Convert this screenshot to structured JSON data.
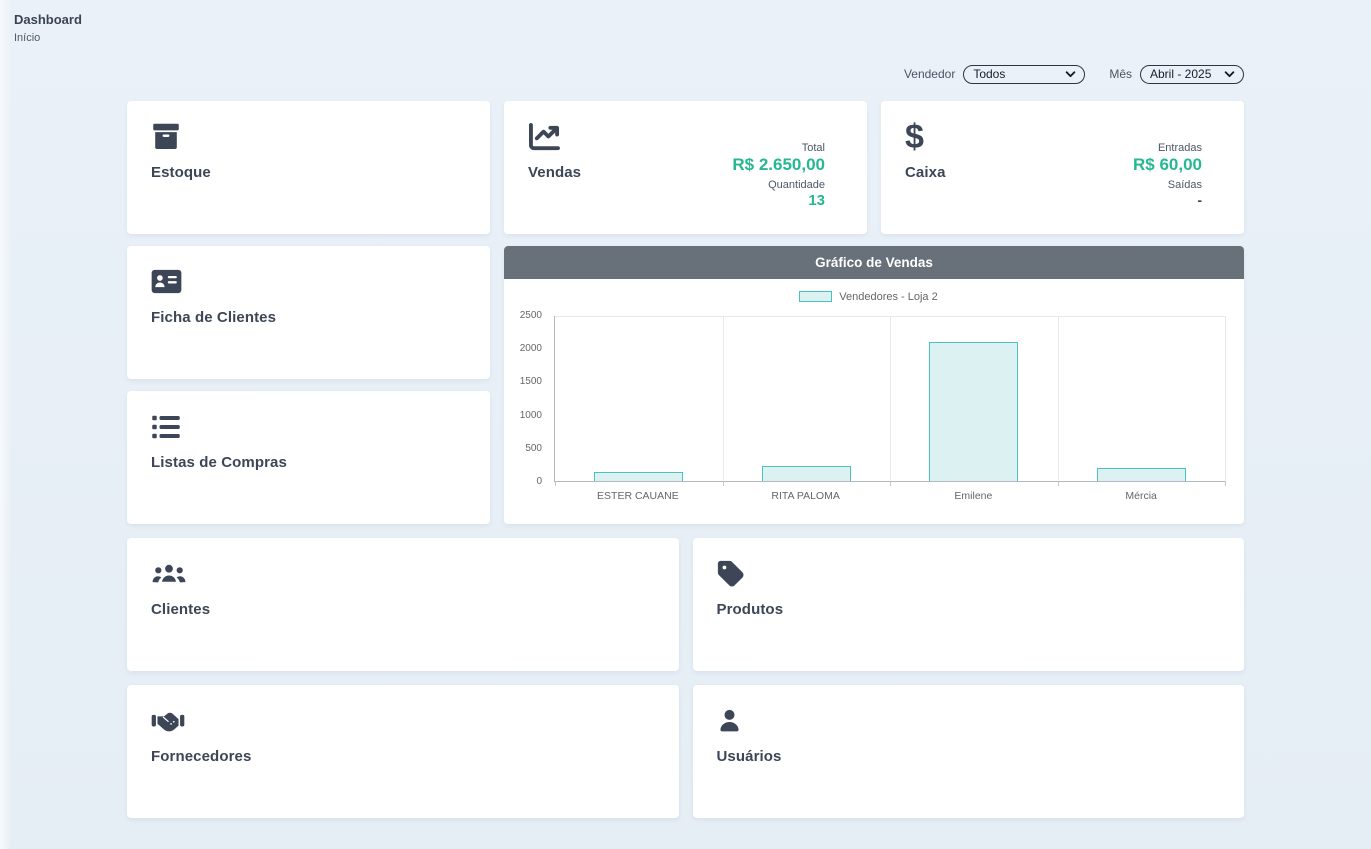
{
  "page": {
    "title": "Dashboard",
    "breadcrumb": "Início"
  },
  "filters": {
    "vendedor_label": "Vendedor",
    "vendedor_value": "Todos",
    "mes_label": "Mês",
    "mes_value": "Abril - 2025"
  },
  "cards": {
    "estoque": {
      "label": "Estoque"
    },
    "vendas": {
      "label": "Vendas",
      "stats": [
        {
          "label": "Total",
          "value": "R$ 2.650,00"
        },
        {
          "label": "Quantidade",
          "value": "13"
        }
      ]
    },
    "caixa": {
      "label": "Caixa",
      "stats": [
        {
          "label": "Entradas",
          "value": "R$ 60,00"
        },
        {
          "label": "Saídas",
          "value": "-"
        }
      ]
    },
    "ficha": {
      "label": "Ficha de Clientes"
    },
    "listas": {
      "label": "Listas de Compras"
    },
    "clientes": {
      "label": "Clientes"
    },
    "produtos": {
      "label": "Produtos"
    },
    "fornecedores": {
      "label": "Fornecedores"
    },
    "usuarios": {
      "label": "Usuários"
    }
  },
  "chart_panel": {
    "title": "Gráfico de Vendas"
  },
  "chart_data": {
    "type": "bar",
    "title": "Gráfico de Vendas",
    "legend": [
      {
        "label": "Vendedores - Loja 2",
        "fill": "#dcf2f2",
        "border": "#4bc0c0"
      }
    ],
    "legend_position": "top",
    "categories": [
      "ESTER CAUANE",
      "RITA PALOMA",
      "Emilene",
      "Mércia"
    ],
    "values": [
      130,
      220,
      2100,
      200
    ],
    "ylim": [
      0,
      2500
    ],
    "yticks": [
      0,
      500,
      1000,
      1500,
      2000,
      2500
    ],
    "grid": "vertical-only",
    "bar_width_ratio": 0.53
  },
  "colors": {
    "accent_teal": "#26b793",
    "panel_header": "#68707a",
    "background": "#eaf1f8"
  }
}
